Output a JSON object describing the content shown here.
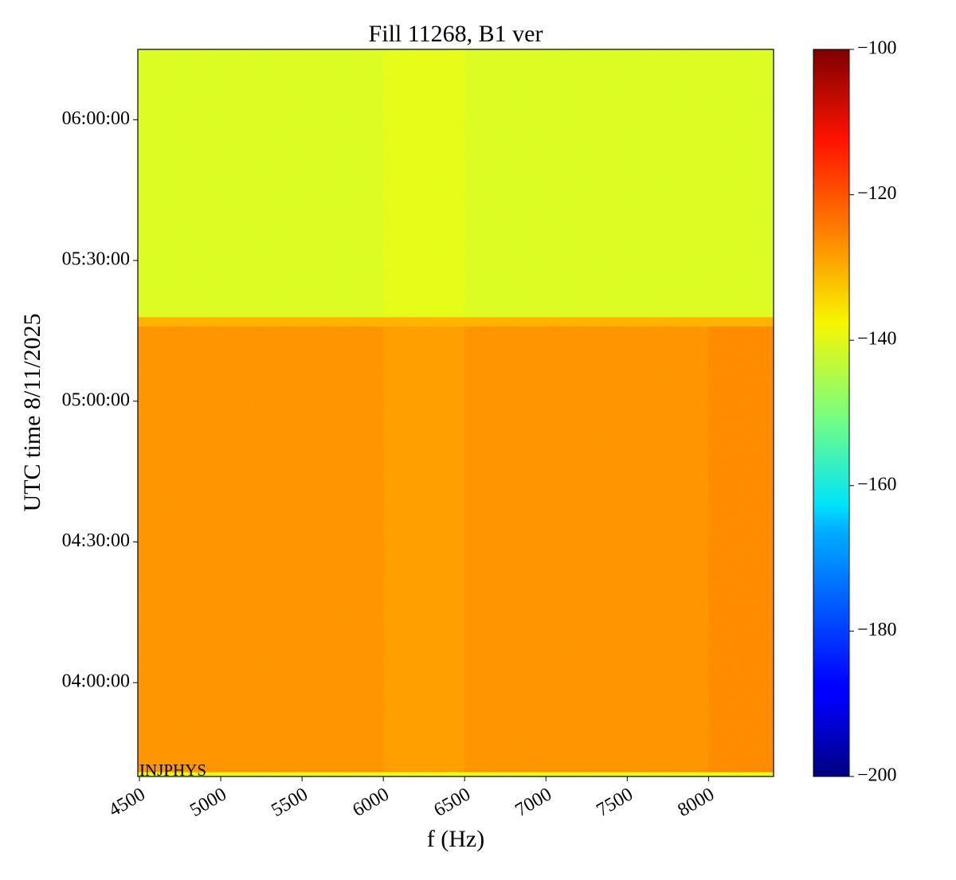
{
  "chart_data": {
    "type": "heatmap",
    "title": "Fill 11268, B1 ver",
    "x_label": "f (Hz)",
    "y_label": "UTC time 8/11/2025",
    "annotation": "INJPHYS",
    "colormap": "jet",
    "x_edges": [
      4490,
      5000,
      5500,
      6000,
      6500,
      7000,
      7500,
      8000,
      8400
    ],
    "y_edges": [
      13200,
      13260,
      18960,
      19080,
      22500
    ],
    "z": [
      [
        -140,
        -140,
        -140,
        -140,
        -140,
        -140,
        -140,
        -140
      ],
      [
        -127,
        -127,
        -127,
        -128,
        -127,
        -127,
        -127,
        -126
      ],
      [
        -130,
        -130,
        -130,
        -130,
        -130,
        -130,
        -130,
        -130
      ],
      [
        -141,
        -141,
        -141,
        -140,
        -141,
        -141,
        -141,
        -141
      ]
    ],
    "xlim": [
      4490,
      8400
    ],
    "xticks": [
      4500,
      5000,
      5500,
      6000,
      6500,
      7000,
      7500,
      8000
    ],
    "ylim": [
      13200,
      22500
    ],
    "yticks": [
      {
        "value": 14400,
        "label": "04:00:00"
      },
      {
        "value": 16200,
        "label": "04:30:00"
      },
      {
        "value": 18000,
        "label": "05:00:00"
      },
      {
        "value": 19800,
        "label": "05:30:00"
      },
      {
        "value": 21600,
        "label": "06:00:00"
      }
    ],
    "clim": [
      -200,
      -100
    ],
    "cticks": [
      {
        "value": -200,
        "label": "−200"
      },
      {
        "value": -180,
        "label": "−180"
      },
      {
        "value": -160,
        "label": "−160"
      },
      {
        "value": -140,
        "label": "−140"
      },
      {
        "value": -120,
        "label": "−120"
      },
      {
        "value": -100,
        "label": "−100"
      }
    ]
  }
}
